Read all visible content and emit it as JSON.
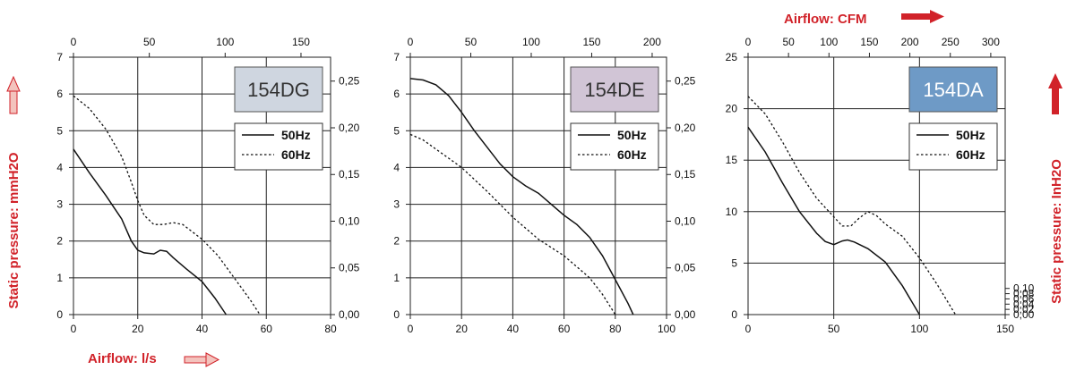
{
  "labels": {
    "left_axis": "Static pressure: mmH2O",
    "right_axis": "Static pressure: InH2O",
    "bottom_axis": "Airflow: l/s",
    "top_axis": "Airflow: CFM"
  },
  "colors": {
    "accent_red": "#d12229",
    "pale_red": "#f3c3bd",
    "grid": "#222222",
    "curve": "#111111"
  },
  "chart_data": [
    {
      "type": "line",
      "title": "154DG",
      "title_bg": "#cfd6e0",
      "x_ticks": [
        0,
        20,
        40,
        60,
        80
      ],
      "xlim": [
        0,
        80
      ],
      "y_ticks": [
        0,
        1,
        2,
        3,
        4,
        5,
        6,
        7
      ],
      "ylim": [
        0,
        7
      ],
      "cfm_ticks": [
        "0",
        "50",
        "100",
        "150"
      ],
      "cfm_values": [
        0,
        50,
        100,
        150
      ],
      "inh2o_ticks": [
        "0,00",
        "0,05",
        "0,10",
        "0,15",
        "0,20",
        "0,25"
      ],
      "inh2o_values": [
        0,
        0.05,
        0.1,
        0.15,
        0.2,
        0.25
      ],
      "legend": [
        "50Hz",
        "60Hz"
      ],
      "series": [
        {
          "name": "50Hz",
          "dash": false,
          "x": [
            0,
            5,
            10,
            15,
            18,
            20,
            22,
            25,
            27,
            29,
            31,
            35,
            40,
            44,
            47.5
          ],
          "y": [
            4.5,
            3.85,
            3.25,
            2.6,
            2.0,
            1.75,
            1.68,
            1.65,
            1.75,
            1.72,
            1.55,
            1.25,
            0.9,
            0.45,
            0.0
          ]
        },
        {
          "name": "60Hz",
          "dash": true,
          "x": [
            0,
            5,
            10,
            15,
            18,
            20,
            22,
            25,
            28,
            31,
            34,
            37,
            40,
            45,
            50,
            55,
            58
          ],
          "y": [
            5.95,
            5.6,
            5.05,
            4.3,
            3.6,
            3.1,
            2.7,
            2.45,
            2.45,
            2.5,
            2.45,
            2.25,
            2.05,
            1.6,
            1.0,
            0.4,
            0.0
          ]
        }
      ]
    },
    {
      "type": "line",
      "title": "154DE",
      "title_bg": "#d1c5d6",
      "x_ticks": [
        0,
        20,
        40,
        60,
        80,
        100
      ],
      "xlim": [
        0,
        100
      ],
      "y_ticks": [
        0,
        1,
        2,
        3,
        4,
        5,
        6,
        7
      ],
      "ylim": [
        0,
        7
      ],
      "cfm_ticks": [
        "0",
        "50",
        "100",
        "150",
        "200"
      ],
      "cfm_values": [
        0,
        50,
        100,
        150,
        200
      ],
      "inh2o_ticks": [
        "0,00",
        "0,05",
        "0,10",
        "0,15",
        "0,20",
        "0,25"
      ],
      "inh2o_values": [
        0,
        0.05,
        0.1,
        0.15,
        0.2,
        0.25
      ],
      "legend": [
        "50Hz",
        "60Hz"
      ],
      "series": [
        {
          "name": "50Hz",
          "dash": false,
          "x": [
            0,
            5,
            10,
            15,
            20,
            25,
            30,
            35,
            40,
            45,
            50,
            55,
            60,
            65,
            70,
            75,
            80,
            85,
            87
          ],
          "y": [
            6.42,
            6.38,
            6.25,
            5.95,
            5.5,
            5.0,
            4.55,
            4.1,
            3.75,
            3.5,
            3.3,
            3.0,
            2.7,
            2.45,
            2.1,
            1.6,
            0.95,
            0.3,
            0.0
          ]
        },
        {
          "name": "60Hz",
          "dash": true,
          "x": [
            0,
            5,
            10,
            15,
            20,
            30,
            40,
            50,
            60,
            70,
            75,
            80
          ],
          "y": [
            4.9,
            4.75,
            4.5,
            4.25,
            4.0,
            3.35,
            2.65,
            2.05,
            1.6,
            1.0,
            0.55,
            0.0
          ]
        }
      ]
    },
    {
      "type": "line",
      "title": "154DA",
      "title_bg": "#6e9ac6",
      "title_color": "#ffffff",
      "x_ticks": [
        0,
        50,
        100,
        150
      ],
      "xlim": [
        0,
        150
      ],
      "y_ticks": [
        0,
        5,
        10,
        15,
        20,
        25
      ],
      "ylim": [
        0,
        25
      ],
      "cfm_ticks": [
        "0",
        "50",
        "100",
        "150",
        "200",
        "250",
        "300"
      ],
      "cfm_values": [
        0,
        50,
        100,
        150,
        200,
        250,
        300
      ],
      "inh2o_ticks": [
        "0,00",
        "0,02",
        "0,04",
        "0,06",
        "0,08",
        "0,10"
      ],
      "inh2o_values": [
        0,
        0.02,
        0.04,
        0.06,
        0.08,
        0.1
      ],
      "legend": [
        "50Hz",
        "60Hz"
      ],
      "series": [
        {
          "name": "50Hz",
          "dash": false,
          "x": [
            0,
            10,
            20,
            30,
            40,
            45,
            50,
            55,
            58,
            62,
            70,
            80,
            90,
            100
          ],
          "y": [
            18.2,
            15.8,
            12.8,
            10.0,
            7.9,
            7.1,
            6.8,
            7.15,
            7.25,
            7.05,
            6.4,
            5.1,
            2.8,
            0.0
          ]
        },
        {
          "name": "60Hz",
          "dash": true,
          "x": [
            0,
            10,
            20,
            30,
            40,
            50,
            55,
            60,
            65,
            70,
            75,
            80,
            90,
            100,
            110,
            121
          ],
          "y": [
            21.2,
            19.5,
            16.8,
            13.8,
            11.3,
            9.5,
            8.6,
            8.6,
            9.4,
            10.0,
            9.6,
            8.8,
            7.6,
            5.5,
            3.0,
            0.0
          ]
        }
      ]
    }
  ]
}
